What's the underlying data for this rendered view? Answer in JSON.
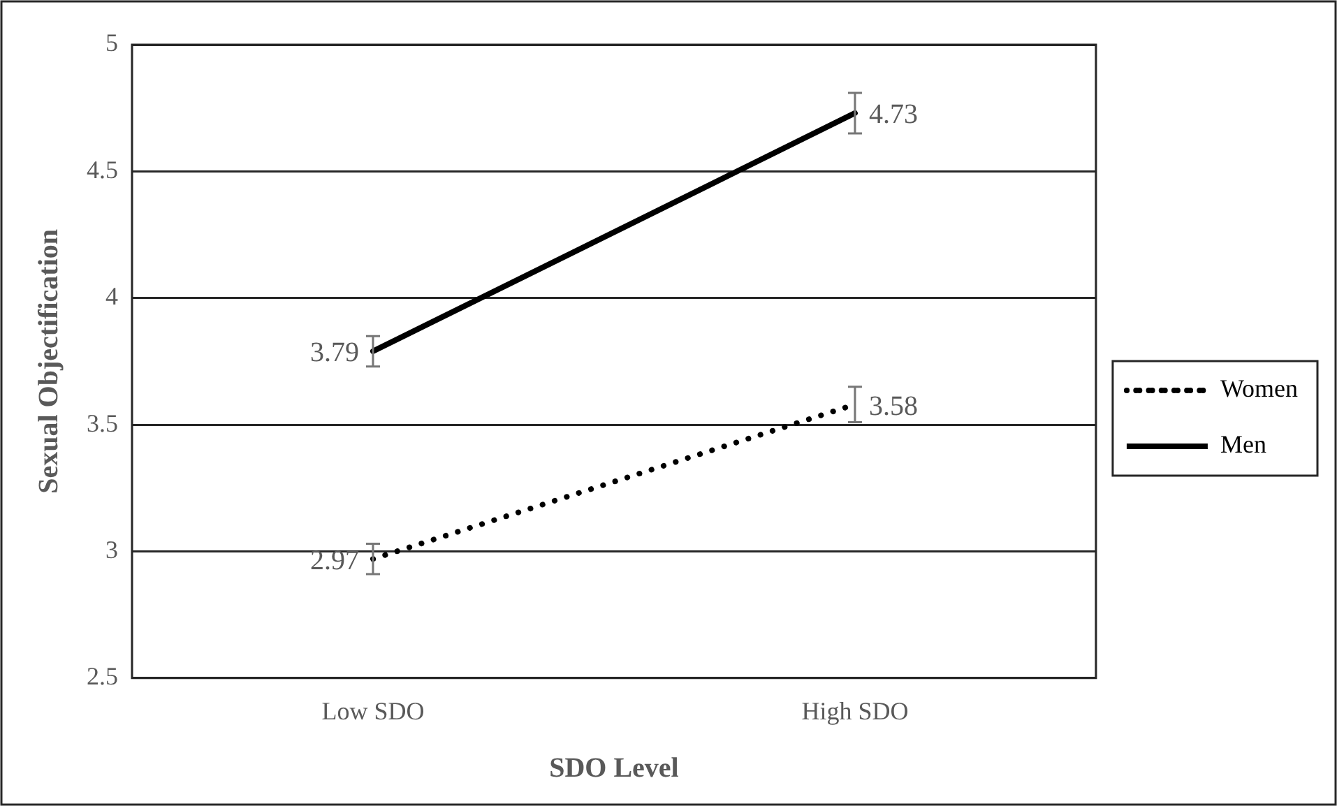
{
  "chart_data": {
    "type": "line",
    "xlabel": "SDO Level",
    "ylabel": "Sexual Objectification",
    "categories": [
      "Low SDO",
      "High SDO"
    ],
    "series": [
      {
        "name": "Women",
        "color": "#000000",
        "line_style": "dotted",
        "values": [
          2.97,
          3.58
        ],
        "errors": [
          0.06,
          0.07
        ]
      },
      {
        "name": "Men",
        "color": "#000000",
        "line_style": "solid",
        "values": [
          3.79,
          4.73
        ],
        "errors": [
          0.06,
          0.08
        ]
      }
    ],
    "ylim": [
      2.5,
      5
    ],
    "yticks": [
      2.5,
      3,
      3.5,
      4,
      4.5,
      5
    ],
    "grid": "y",
    "legend": "right",
    "marker": "none",
    "data_labels": true
  }
}
